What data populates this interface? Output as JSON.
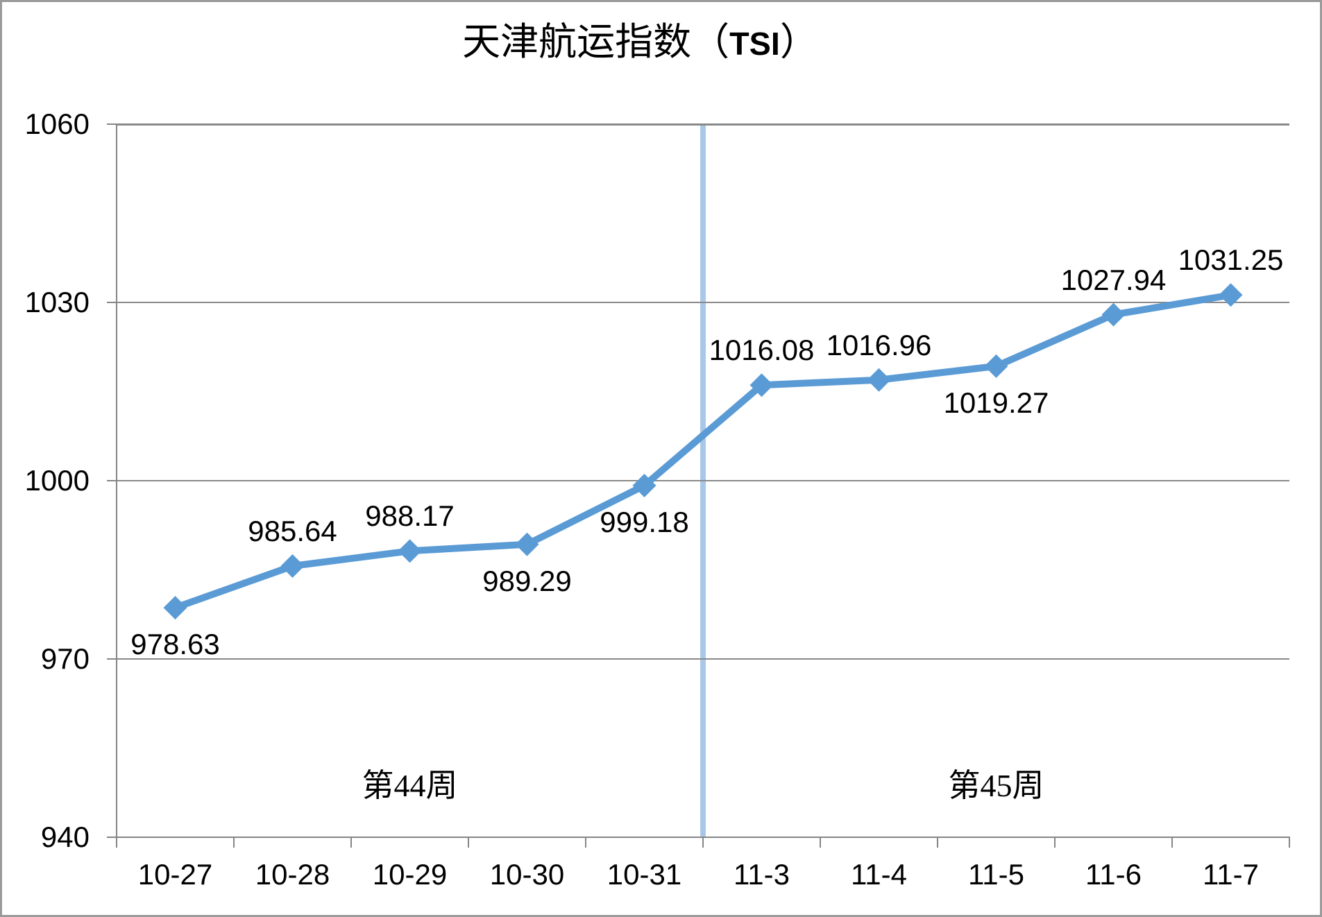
{
  "title_parts": {
    "prefix": "天津航运指数（",
    "tsi": "TSI",
    "suffix": "）"
  },
  "chart_data": {
    "type": "line",
    "title": "天津航运指数（TSI）",
    "categories": [
      "10-27",
      "10-28",
      "10-29",
      "10-30",
      "10-31",
      "11-3",
      "11-4",
      "11-5",
      "11-6",
      "11-7"
    ],
    "series": [
      {
        "name": "TSI",
        "values": [
          978.63,
          985.64,
          988.17,
          989.29,
          999.18,
          1016.08,
          1016.96,
          1019.27,
          1027.94,
          1031.25
        ]
      }
    ],
    "data_labels": [
      "978.63",
      "985.64",
      "988.17",
      "989.29",
      "999.18",
      "1016.08",
      "1016.96",
      "1019.27",
      "1027.94",
      "1031.25"
    ],
    "data_label_positions": [
      "below",
      "above",
      "above",
      "below",
      "below",
      "above",
      "above",
      "below",
      "above",
      "above"
    ],
    "ylim": [
      940,
      1060
    ],
    "yticks": [
      940,
      970,
      1000,
      1030,
      1060
    ],
    "ytick_labels": [
      "940",
      "970",
      "1000",
      "1030",
      "1060"
    ],
    "xlabel": "",
    "ylabel": "",
    "grid": "horizontal-only",
    "legend": "none",
    "divider": {
      "after_category": "10-31",
      "color": "#A9C8E9"
    },
    "annotations": [
      {
        "text": "第44周",
        "region": "left-of-divider"
      },
      {
        "text": "第45周",
        "region": "right-of-divider"
      }
    ],
    "colors": {
      "series_line": "#5B9BD5",
      "marker": "#5B9BD5",
      "gridline": "#898989",
      "axis": "#858585",
      "text": "#000000",
      "background": "#FFFFFF",
      "border": "#9A9A9A"
    }
  }
}
